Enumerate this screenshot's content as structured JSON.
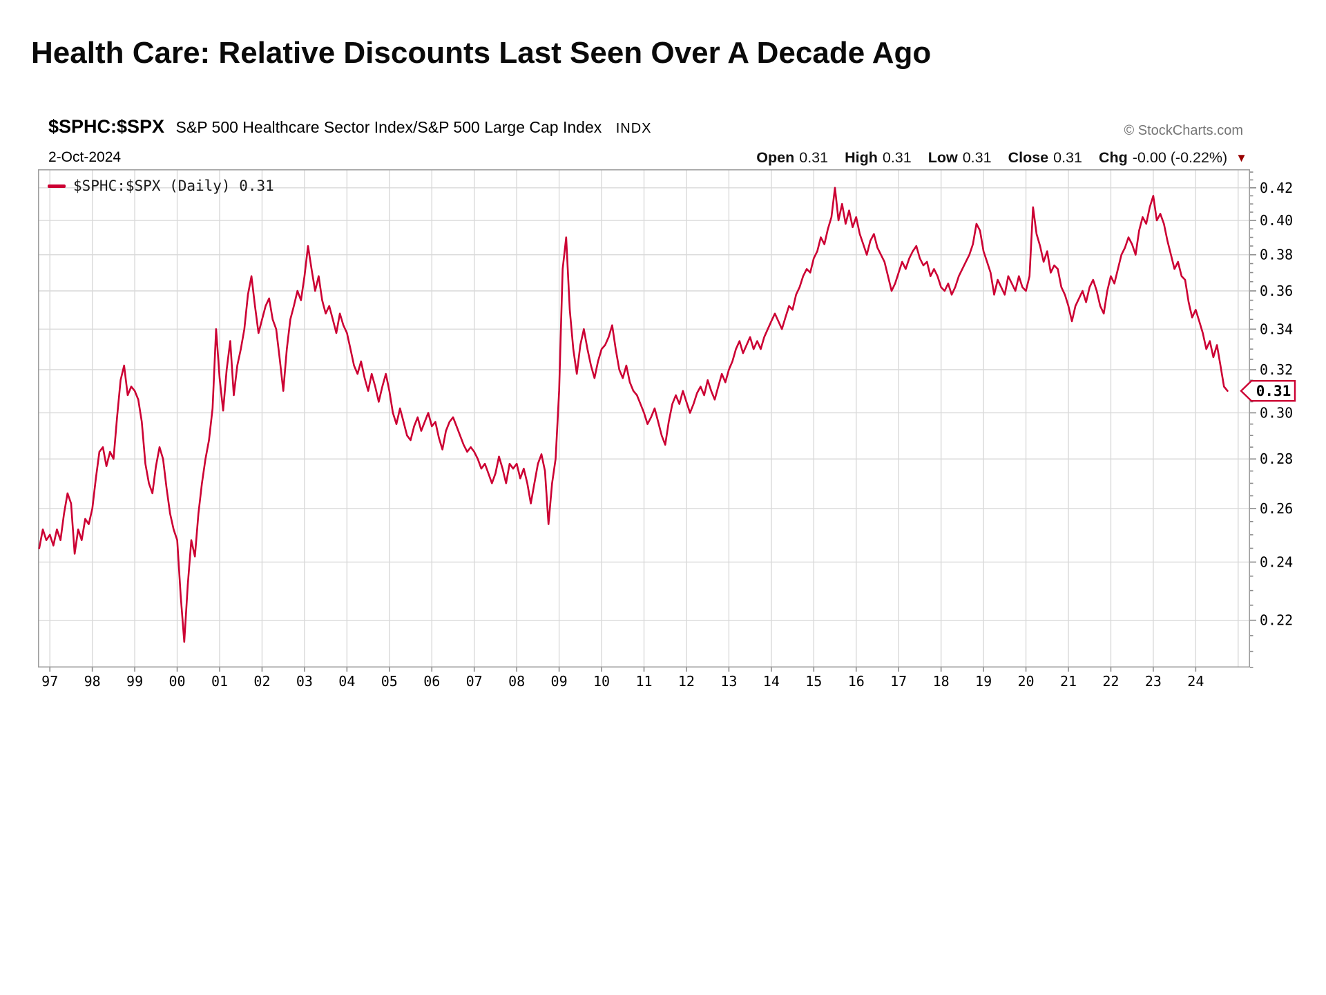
{
  "title": "Health Care: Relative Discounts Last Seen Over A Decade Ago",
  "header": {
    "symbol": "$SPHC:$SPX",
    "description": "S&P 500 Healthcare Sector Index/S&P 500 Large Cap Index",
    "exchange": "INDX",
    "source": "© StockCharts.com",
    "date": "2-Oct-2024",
    "quote": {
      "items": [
        {
          "label": "Open",
          "value": "0.31"
        },
        {
          "label": "High",
          "value": "0.31"
        },
        {
          "label": "Low",
          "value": "0.31"
        },
        {
          "label": "Close",
          "value": "0.31"
        },
        {
          "label": "Chg",
          "value": "-0.00 (-0.22%)"
        }
      ],
      "direction_glyph": "▼"
    }
  },
  "legend": {
    "label": "$SPHC:$SPX (Daily) 0.31"
  },
  "last_value_label": "0.31",
  "colors": {
    "line": "#cc0033",
    "grid": "#d9d9d9",
    "border": "#9e9e9e",
    "tick": "#8a8a8a",
    "axis_text": "#000000",
    "source_gray": "#757575",
    "chg_triangle": "#990000",
    "tag_border": "#cc0033",
    "tag_fill": "#ffffff",
    "tag_text": "#000000"
  },
  "chart_data": {
    "type": "line",
    "title": "Health Care: Relative Discounts Last Seen Over A Decade Ago",
    "xlabel": "",
    "ylabel": "",
    "y_scale": "log",
    "grid": true,
    "legend_position": "top-left",
    "ylim": [
      0.205,
      0.4318
    ],
    "xlim": [
      1996.72,
      2025.28
    ],
    "y_ticks": [
      0.22,
      0.24,
      0.26,
      0.28,
      0.3,
      0.32,
      0.34,
      0.36,
      0.38,
      0.4,
      0.42
    ],
    "y_tick_labels": [
      "0.22",
      "0.24",
      "0.26",
      "0.28",
      "0.30",
      "0.32",
      "0.34",
      "0.36",
      "0.38",
      "0.40",
      "0.42"
    ],
    "x_tick_years": [
      1997,
      1998,
      1999,
      2000,
      2001,
      2002,
      2003,
      2004,
      2005,
      2006,
      2007,
      2008,
      2009,
      2010,
      2011,
      2012,
      2013,
      2014,
      2015,
      2016,
      2017,
      2018,
      2019,
      2020,
      2021,
      2022,
      2023,
      2024
    ],
    "x_tick_labels": [
      "97",
      "98",
      "99",
      "00",
      "01",
      "02",
      "03",
      "04",
      "05",
      "06",
      "07",
      "08",
      "09",
      "10",
      "11",
      "12",
      "13",
      "14",
      "15",
      "16",
      "17",
      "18",
      "19",
      "20",
      "21",
      "22",
      "23",
      "24"
    ],
    "x_gridline_years": [
      1997,
      1998,
      1999,
      2000,
      2001,
      2002,
      2003,
      2004,
      2005,
      2006,
      2007,
      2008,
      2009,
      2010,
      2011,
      2012,
      2013,
      2014,
      2015,
      2016,
      2017,
      2018,
      2019,
      2020,
      2021,
      2022,
      2023,
      2024,
      2025
    ],
    "last_value": 0.31,
    "series": [
      {
        "name": "$SPHC:$SPX (Daily)",
        "x_start": 1996.75,
        "x_step": 0.0833333,
        "values": [
          0.245,
          0.252,
          0.248,
          0.25,
          0.246,
          0.252,
          0.248,
          0.258,
          0.266,
          0.262,
          0.243,
          0.252,
          0.248,
          0.256,
          0.254,
          0.26,
          0.272,
          0.283,
          0.285,
          0.277,
          0.283,
          0.28,
          0.298,
          0.315,
          0.322,
          0.308,
          0.312,
          0.31,
          0.306,
          0.296,
          0.278,
          0.27,
          0.266,
          0.277,
          0.285,
          0.28,
          0.268,
          0.258,
          0.252,
          0.248,
          0.228,
          0.213,
          0.232,
          0.248,
          0.242,
          0.258,
          0.27,
          0.28,
          0.288,
          0.302,
          0.34,
          0.316,
          0.301,
          0.32,
          0.334,
          0.308,
          0.322,
          0.33,
          0.34,
          0.358,
          0.368,
          0.352,
          0.338,
          0.345,
          0.352,
          0.356,
          0.345,
          0.34,
          0.325,
          0.31,
          0.33,
          0.345,
          0.352,
          0.36,
          0.355,
          0.368,
          0.385,
          0.372,
          0.36,
          0.368,
          0.355,
          0.348,
          0.352,
          0.345,
          0.338,
          0.348,
          0.342,
          0.338,
          0.33,
          0.322,
          0.318,
          0.324,
          0.316,
          0.31,
          0.318,
          0.312,
          0.305,
          0.312,
          0.318,
          0.31,
          0.3,
          0.295,
          0.302,
          0.296,
          0.29,
          0.288,
          0.294,
          0.298,
          0.292,
          0.296,
          0.3,
          0.294,
          0.296,
          0.289,
          0.284,
          0.292,
          0.296,
          0.298,
          0.294,
          0.29,
          0.286,
          0.283,
          0.285,
          0.283,
          0.28,
          0.276,
          0.278,
          0.274,
          0.27,
          0.274,
          0.281,
          0.276,
          0.27,
          0.278,
          0.276,
          0.278,
          0.272,
          0.276,
          0.27,
          0.262,
          0.27,
          0.278,
          0.282,
          0.275,
          0.254,
          0.27,
          0.28,
          0.31,
          0.372,
          0.39,
          0.35,
          0.33,
          0.318,
          0.332,
          0.34,
          0.33,
          0.322,
          0.316,
          0.324,
          0.33,
          0.332,
          0.336,
          0.342,
          0.33,
          0.32,
          0.316,
          0.322,
          0.314,
          0.31,
          0.308,
          0.304,
          0.3,
          0.295,
          0.298,
          0.302,
          0.296,
          0.29,
          0.286,
          0.296,
          0.304,
          0.308,
          0.304,
          0.31,
          0.305,
          0.3,
          0.304,
          0.309,
          0.312,
          0.308,
          0.315,
          0.31,
          0.306,
          0.312,
          0.318,
          0.314,
          0.32,
          0.324,
          0.33,
          0.334,
          0.328,
          0.332,
          0.336,
          0.33,
          0.334,
          0.33,
          0.336,
          0.34,
          0.344,
          0.348,
          0.344,
          0.34,
          0.346,
          0.352,
          0.35,
          0.358,
          0.362,
          0.368,
          0.372,
          0.37,
          0.378,
          0.382,
          0.39,
          0.386,
          0.395,
          0.402,
          0.42,
          0.4,
          0.41,
          0.398,
          0.406,
          0.396,
          0.402,
          0.392,
          0.386,
          0.38,
          0.388,
          0.392,
          0.384,
          0.38,
          0.376,
          0.368,
          0.36,
          0.364,
          0.37,
          0.376,
          0.372,
          0.378,
          0.382,
          0.385,
          0.378,
          0.374,
          0.376,
          0.368,
          0.372,
          0.368,
          0.362,
          0.36,
          0.364,
          0.358,
          0.362,
          0.368,
          0.372,
          0.376,
          0.38,
          0.386,
          0.398,
          0.394,
          0.382,
          0.376,
          0.37,
          0.358,
          0.366,
          0.362,
          0.358,
          0.368,
          0.364,
          0.36,
          0.368,
          0.362,
          0.36,
          0.368,
          0.408,
          0.392,
          0.385,
          0.376,
          0.382,
          0.37,
          0.374,
          0.372,
          0.362,
          0.358,
          0.352,
          0.344,
          0.352,
          0.356,
          0.36,
          0.354,
          0.362,
          0.366,
          0.36,
          0.352,
          0.348,
          0.36,
          0.368,
          0.364,
          0.372,
          0.38,
          0.384,
          0.39,
          0.386,
          0.38,
          0.394,
          0.402,
          0.398,
          0.408,
          0.415,
          0.4,
          0.404,
          0.398,
          0.388,
          0.38,
          0.372,
          0.376,
          0.368,
          0.366,
          0.354,
          0.346,
          0.35,
          0.344,
          0.338,
          0.33,
          0.334,
          0.326,
          0.332,
          0.322,
          0.312,
          0.31
        ]
      }
    ]
  }
}
